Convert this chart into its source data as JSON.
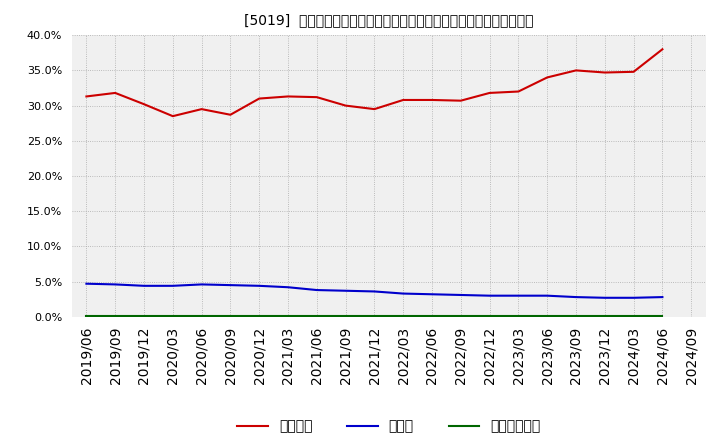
{
  "title": "[5019]  自己資本、のれん、繰延税金資産の総資産に対する比率の推移",
  "x_labels": [
    "2019/06",
    "2019/09",
    "2019/12",
    "2020/03",
    "2020/06",
    "2020/09",
    "2020/12",
    "2021/03",
    "2021/06",
    "2021/09",
    "2021/12",
    "2022/03",
    "2022/06",
    "2022/09",
    "2022/12",
    "2023/03",
    "2023/06",
    "2023/09",
    "2023/12",
    "2024/03",
    "2024/06",
    "2024/09"
  ],
  "jikoshihon": [
    0.313,
    0.318,
    0.302,
    0.285,
    0.295,
    0.287,
    0.31,
    0.313,
    0.312,
    0.3,
    0.295,
    0.308,
    0.308,
    0.307,
    0.318,
    0.32,
    0.34,
    0.35,
    0.347,
    0.348,
    0.38,
    null
  ],
  "noren": [
    0.047,
    0.046,
    0.044,
    0.044,
    0.046,
    0.045,
    0.044,
    0.042,
    0.038,
    0.037,
    0.036,
    0.033,
    0.032,
    0.031,
    0.03,
    0.03,
    0.03,
    0.028,
    0.027,
    0.027,
    0.028,
    null
  ],
  "kurinobe": [
    0.001,
    0.001,
    0.001,
    0.001,
    0.001,
    0.001,
    0.001,
    0.001,
    0.001,
    0.001,
    0.001,
    0.001,
    0.001,
    0.001,
    0.001,
    0.001,
    0.001,
    0.001,
    0.001,
    0.001,
    0.001,
    null
  ],
  "jikoshihon_color": "#cc0000",
  "noren_color": "#0000cc",
  "kurinobe_color": "#006600",
  "background_color": "#ffffff",
  "plot_bg_color": "#f0f0f0",
  "grid_color": "#aaaaaa",
  "ylim": [
    0.0,
    0.4
  ],
  "yticks": [
    0.0,
    0.05,
    0.1,
    0.15,
    0.2,
    0.25,
    0.3,
    0.35,
    0.4
  ],
  "legend_labels": [
    "自己資本",
    "のれん",
    "繰延税金資産"
  ]
}
